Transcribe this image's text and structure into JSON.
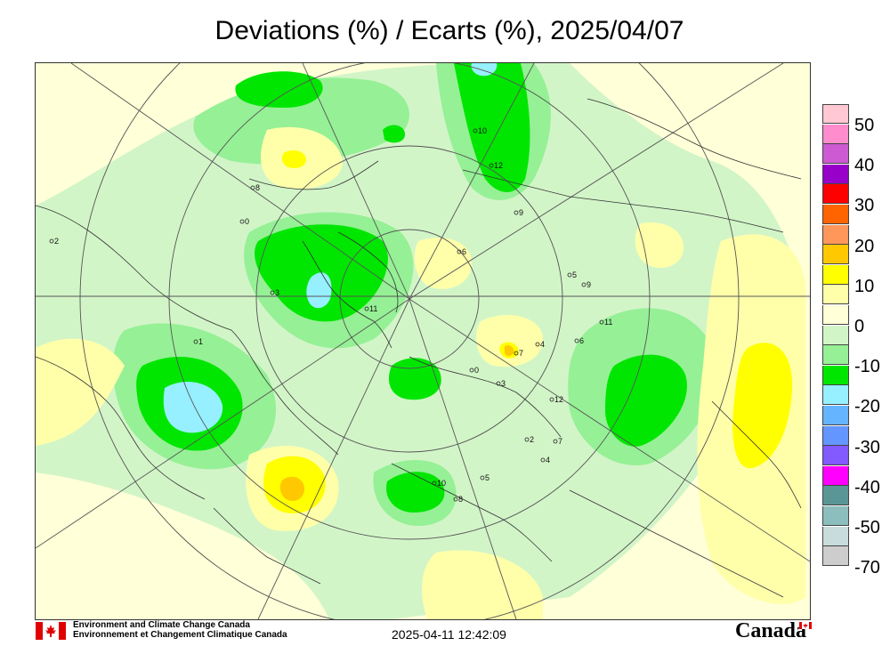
{
  "title": "Deviations (%) / Ecarts (%), 2025/04/07",
  "legend": {
    "labels": [
      "50",
      "40",
      "30",
      "20",
      "10",
      "0",
      "-10",
      "-20",
      "-30",
      "-40",
      "-50",
      "-70"
    ],
    "colors": [
      "#ffc8d2",
      "#ff8ccd",
      "#cd5ad2",
      "#9600c8",
      "#ff0000",
      "#ff6400",
      "#ff965a",
      "#ffc800",
      "#ffff00",
      "#ffffaa",
      "#ffffd8",
      "#d2f5c8",
      "#96f096",
      "#00e600",
      "#96f0ff",
      "#64b4ff",
      "#6496ff",
      "#825aff",
      "#ff00ff",
      "#5a9696",
      "#8cbebe",
      "#c8dcdc",
      "#cdcdcd"
    ]
  },
  "station_labels": [
    "0",
    "2",
    "10",
    "8",
    "12",
    "9",
    "6",
    "11",
    "7",
    "5",
    "3",
    "1",
    "4",
    "12",
    "10",
    "8",
    "6",
    "0",
    "4",
    "9",
    "11",
    "2",
    "7",
    "5",
    "3"
  ],
  "footer": {
    "org_en": "Environment and Climate Change Canada",
    "org_fr": "Environnement et Changement Climatique Canada",
    "timestamp": "2025-04-11 12:42:09",
    "wordmark": "Canada"
  },
  "colors": {
    "land_outline": "#333333",
    "grid": "#555555",
    "zero_band": "#ffffd8",
    "neg10_band": "#d2f5c8",
    "neg20_band": "#96f096",
    "neg30_band": "#00e600",
    "neg40_band": "#96f0ff",
    "pos10_band": "#ffffaa",
    "pos20_band": "#ffff00",
    "pos30_band": "#ffc800",
    "pos40_band": "#ff965a"
  }
}
